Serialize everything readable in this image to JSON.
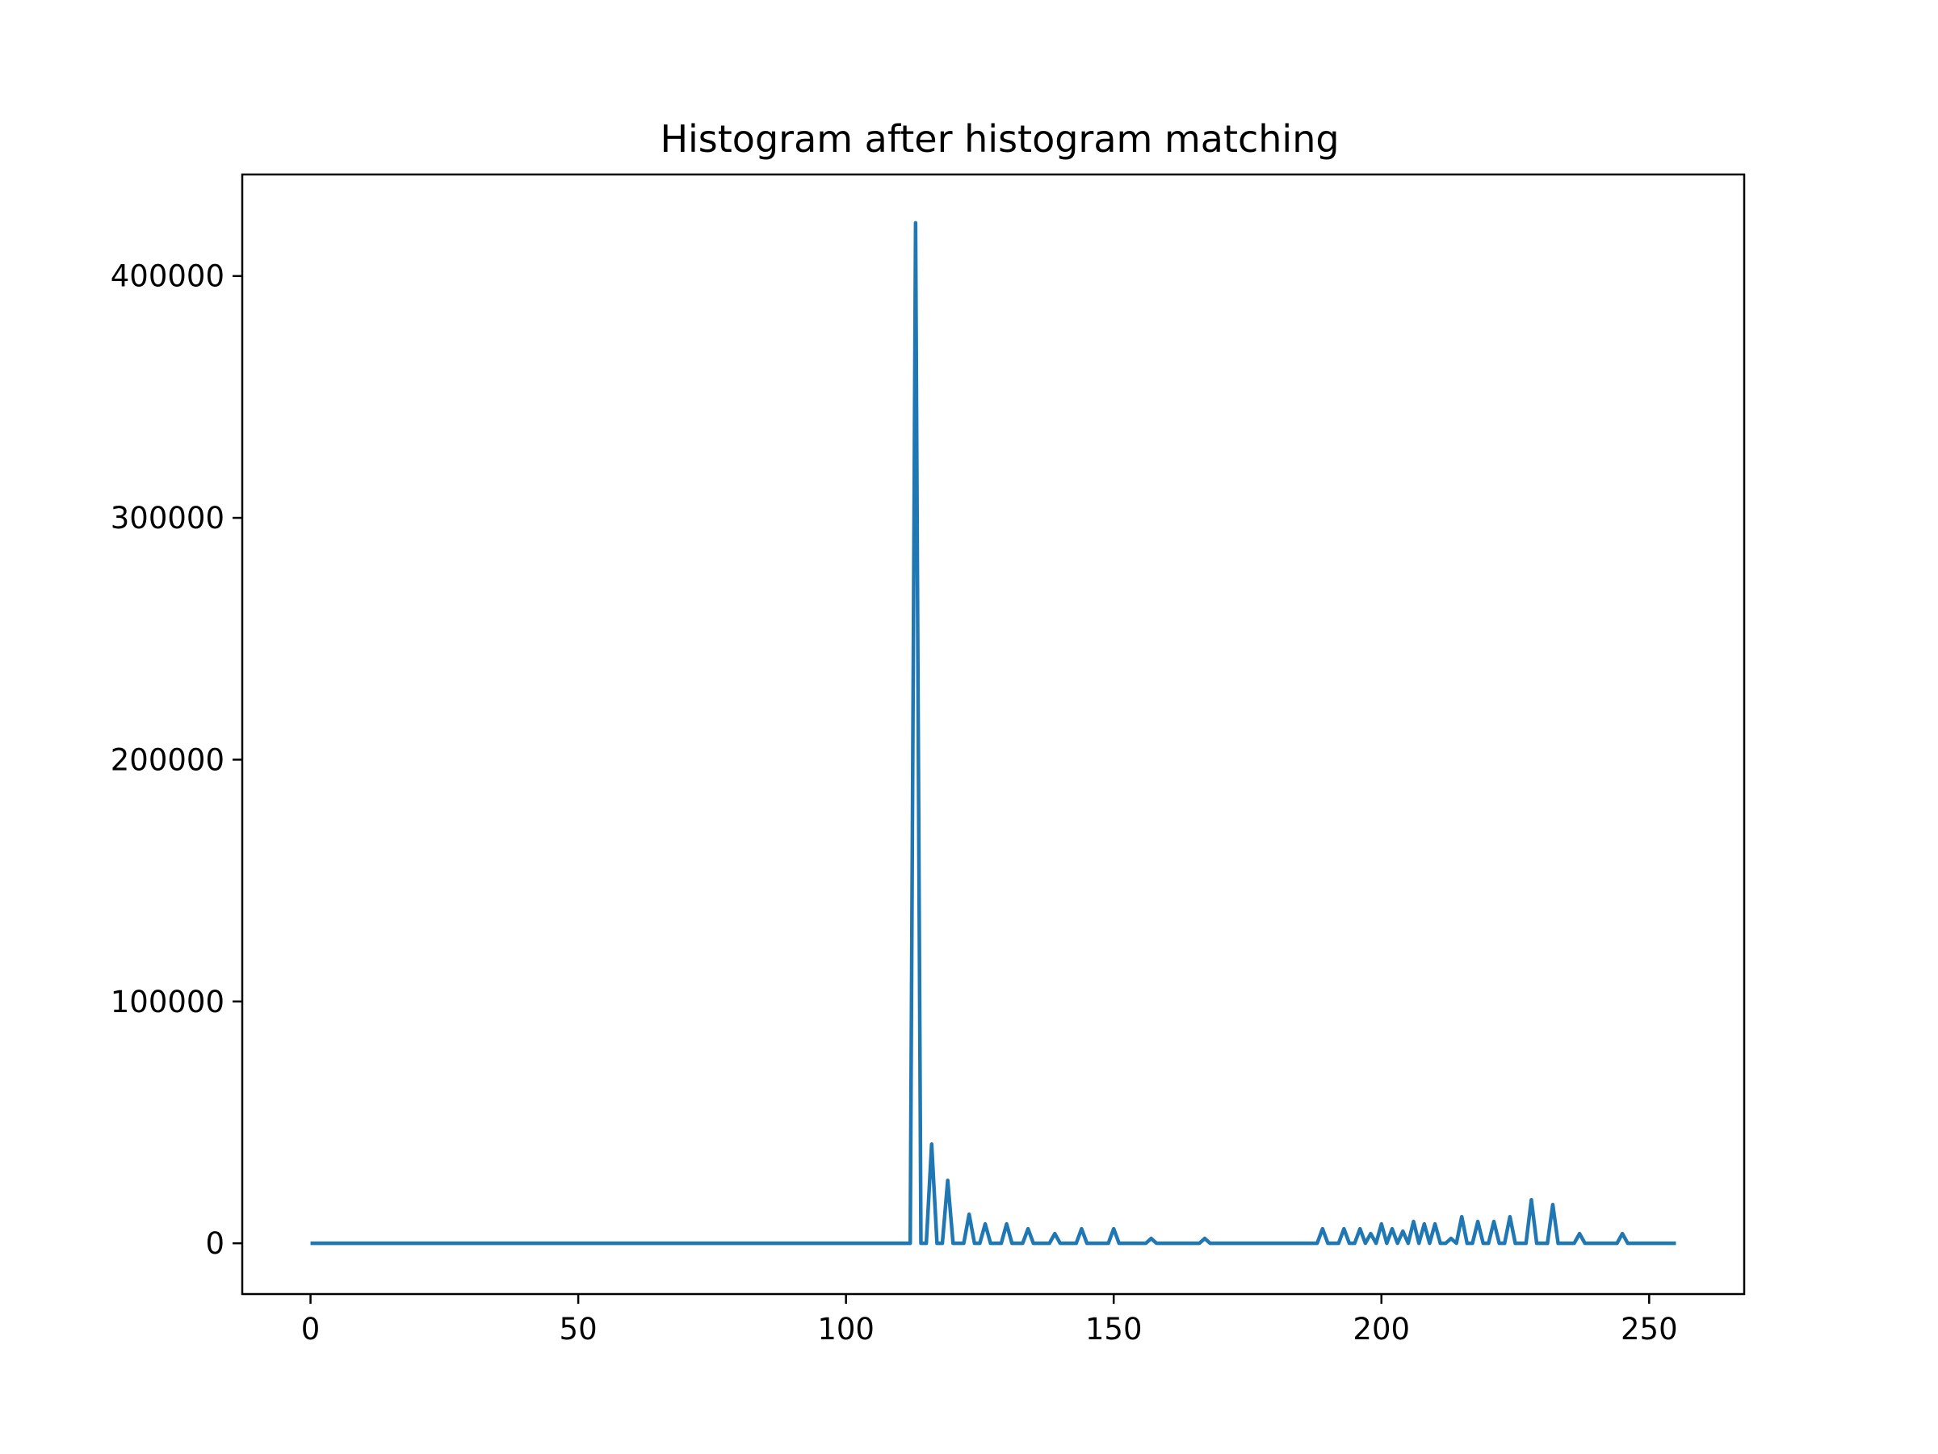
{
  "chart_data": {
    "type": "line",
    "title": "Histogram after histogram matching",
    "xlabel": "",
    "ylabel": "",
    "xlim": [
      -12.75,
      267.75
    ],
    "ylim": [
      -21000,
      442000
    ],
    "grid": false,
    "x_ticks": [
      0,
      50,
      100,
      150,
      200,
      250
    ],
    "y_ticks": [
      0,
      100000,
      200000,
      300000,
      400000
    ],
    "series": [
      {
        "color": "#1f77b4",
        "points": [
          [
            0,
            0
          ],
          [
            112,
            0
          ],
          [
            113,
            422000
          ],
          [
            114,
            0
          ],
          [
            115,
            0
          ],
          [
            116,
            41000
          ],
          [
            117,
            0
          ],
          [
            118,
            0
          ],
          [
            119,
            26000
          ],
          [
            120,
            0
          ],
          [
            122,
            0
          ],
          [
            123,
            12000
          ],
          [
            124,
            0
          ],
          [
            125,
            0
          ],
          [
            126,
            8000
          ],
          [
            127,
            0
          ],
          [
            129,
            0
          ],
          [
            130,
            8000
          ],
          [
            131,
            0
          ],
          [
            133,
            0
          ],
          [
            134,
            6000
          ],
          [
            135,
            0
          ],
          [
            138,
            0
          ],
          [
            139,
            4000
          ],
          [
            140,
            0
          ],
          [
            143,
            0
          ],
          [
            144,
            6000
          ],
          [
            145,
            0
          ],
          [
            149,
            0
          ],
          [
            150,
            6000
          ],
          [
            151,
            0
          ],
          [
            156,
            0
          ],
          [
            157,
            2000
          ],
          [
            158,
            0
          ],
          [
            166,
            0
          ],
          [
            167,
            2000
          ],
          [
            168,
            0
          ],
          [
            188,
            0
          ],
          [
            189,
            6000
          ],
          [
            190,
            0
          ],
          [
            192,
            0
          ],
          [
            193,
            6000
          ],
          [
            194,
            0
          ],
          [
            195,
            0
          ],
          [
            196,
            6000
          ],
          [
            197,
            0
          ],
          [
            198,
            4000
          ],
          [
            199,
            0
          ],
          [
            200,
            8000
          ],
          [
            201,
            0
          ],
          [
            202,
            6000
          ],
          [
            203,
            0
          ],
          [
            204,
            5000
          ],
          [
            205,
            0
          ],
          [
            206,
            9000
          ],
          [
            207,
            0
          ],
          [
            208,
            8000
          ],
          [
            209,
            0
          ],
          [
            210,
            8000
          ],
          [
            211,
            0
          ],
          [
            212,
            0
          ],
          [
            213,
            2000
          ],
          [
            214,
            0
          ],
          [
            215,
            11000
          ],
          [
            216,
            0
          ],
          [
            217,
            0
          ],
          [
            218,
            9000
          ],
          [
            219,
            0
          ],
          [
            220,
            0
          ],
          [
            221,
            9000
          ],
          [
            222,
            0
          ],
          [
            223,
            0
          ],
          [
            224,
            11000
          ],
          [
            225,
            0
          ],
          [
            227,
            0
          ],
          [
            228,
            18000
          ],
          [
            229,
            0
          ],
          [
            231,
            0
          ],
          [
            232,
            16000
          ],
          [
            233,
            0
          ],
          [
            236,
            0
          ],
          [
            237,
            4000
          ],
          [
            238,
            0
          ],
          [
            244,
            0
          ],
          [
            245,
            4000
          ],
          [
            246,
            0
          ],
          [
            255,
            0
          ]
        ]
      }
    ]
  }
}
